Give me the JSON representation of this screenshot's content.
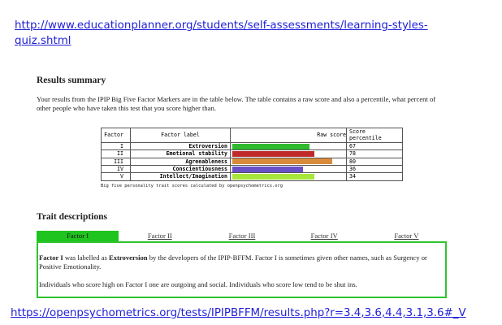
{
  "links": {
    "top": "http://www.educationplanner.org/students/self-assessments/learning-styles-quiz.shtml",
    "bottom": "https://openpsychometrics.org/tests/IPIPBFFM/results.php?r=3.4,3.6,4.4,3.1,3.6#_V"
  },
  "results": {
    "heading": "Results summary",
    "intro": "Your results from the IPIP Big Five Factor Markers are in the table below. The table contains a raw score and also a percentile, what percent of other people who have taken this test that you score higher than."
  },
  "table": {
    "headers": {
      "factor": "Factor",
      "label": "Factor label",
      "raw": "Raw score",
      "pct": "Score percentile"
    },
    "rows": [
      {
        "factor": "I",
        "label": "Extroversion",
        "raw_score": 3.4,
        "percentile": "67",
        "color": "#2fba2f"
      },
      {
        "factor": "II",
        "label": "Emotional stability",
        "raw_score": 3.6,
        "percentile": "78",
        "color": "#c02a2a"
      },
      {
        "factor": "III",
        "label": "Agreeableness",
        "raw_score": 4.4,
        "percentile": "80",
        "color": "#d98b3c"
      },
      {
        "factor": "IV",
        "label": "Conscientiousness",
        "raw_score": 3.1,
        "percentile": "36",
        "color": "#6a4fc8"
      },
      {
        "factor": "V",
        "label": "Intellect/Imagination",
        "raw_score": 3.6,
        "percentile": "34",
        "color": "#a8e63c"
      }
    ],
    "score_max": 5,
    "caption": "Big five personality trait scores calculated by openpsychometrics.org"
  },
  "traits": {
    "heading": "Trait descriptions",
    "tabs": [
      "Factor I",
      "Factor II",
      "Factor III",
      "Factor IV",
      "Factor V"
    ],
    "active_tab": 0,
    "p1_bold_a": "Factor I",
    "p1_text_a": " was labelled as ",
    "p1_bold_b": "Extroversion",
    "p1_text_b": " by the developers of the IPIP-BFFM. Factor I is sometimes given other names, such as Surgency or Positive Emotionality.",
    "p2": "Individuals who score high on Factor I one are outgoing and social. Individuals who score low tend to be shut ins."
  }
}
